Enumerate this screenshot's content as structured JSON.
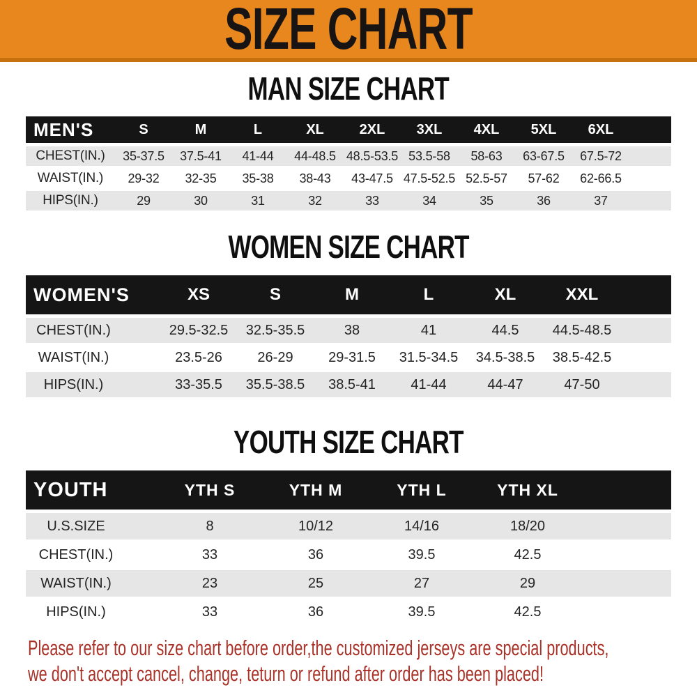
{
  "banner": {
    "title": "SIZE CHART",
    "bg_color": "#E8871E",
    "border_color": "#C7700E",
    "text_color": "#171413"
  },
  "sections": [
    {
      "id": "men",
      "heading": "MAN SIZE CHART",
      "header_label": "MEN'S",
      "columns": [
        "S",
        "M",
        "L",
        "XL",
        "2XL",
        "3XL",
        "4XL",
        "5XL",
        "6XL"
      ],
      "rows": [
        {
          "label": "CHEST(IN.)",
          "values": [
            "35-37.5",
            "37.5-41",
            "41-44",
            "44-48.5",
            "48.5-53.5",
            "53.5-58",
            "58-63",
            "63-67.5",
            "67.5-72"
          ]
        },
        {
          "label": "WAIST(IN.)",
          "values": [
            "29-32",
            "32-35",
            "35-38",
            "38-43",
            "43-47.5",
            "47.5-52.5",
            "52.5-57",
            "57-62",
            "62-66.5"
          ]
        },
        {
          "label": "HIPS(IN.)",
          "values": [
            "29",
            "30",
            "31",
            "32",
            "33",
            "34",
            "35",
            "36",
            "37"
          ]
        }
      ]
    },
    {
      "id": "women",
      "heading": "WOMEN SIZE CHART",
      "header_label": "WOMEN'S",
      "columns": [
        "XS",
        "S",
        "M",
        "L",
        "XL",
        "XXL"
      ],
      "rows": [
        {
          "label": "CHEST(IN.)",
          "values": [
            "29.5-32.5",
            "32.5-35.5",
            "38",
            "41",
            "44.5",
            "44.5-48.5"
          ]
        },
        {
          "label": "WAIST(IN.)",
          "values": [
            "23.5-26",
            "26-29",
            "29-31.5",
            "31.5-34.5",
            "34.5-38.5",
            "38.5-42.5"
          ]
        },
        {
          "label": "HIPS(IN.)",
          "values": [
            "33-35.5",
            "35.5-38.5",
            "38.5-41",
            "41-44",
            "44-47",
            "47-50"
          ]
        }
      ]
    },
    {
      "id": "youth",
      "heading": "YOUTH SIZE CHART",
      "header_label": "YOUTH",
      "columns": [
        "YTH S",
        "YTH M",
        "YTH L",
        "YTH XL"
      ],
      "rows": [
        {
          "label": "U.S.SIZE",
          "values": [
            "8",
            "10/12",
            "14/16",
            "18/20"
          ]
        },
        {
          "label": "CHEST(IN.)",
          "values": [
            "33",
            "36",
            "39.5",
            "42.5"
          ]
        },
        {
          "label": "WAIST(IN.)",
          "values": [
            "23",
            "25",
            "27",
            "29"
          ]
        },
        {
          "label": "HIPS(IN.)",
          "values": [
            "33",
            "36",
            "39.5",
            "42.5"
          ]
        }
      ]
    }
  ],
  "table_style": {
    "header_bg": "#151515",
    "header_text": "#ffffff",
    "shade_row_bg": "#E6E6E6",
    "value_text": "#242424"
  },
  "disclaimer": {
    "line1": "Please refer to our size chart before order,the customized jerseys are special products,",
    "line2": "we don't accept cancel, change, teturn or refund after order has been placed!",
    "color": "#A93128"
  }
}
